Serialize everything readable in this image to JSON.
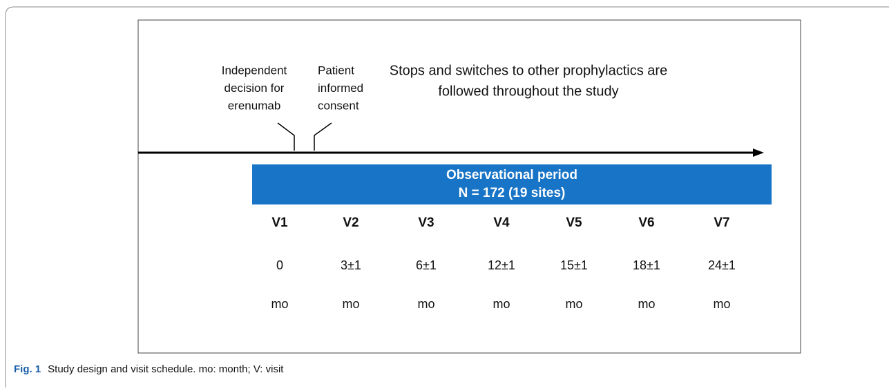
{
  "diagram": {
    "annotation_left": [
      "Independent",
      "decision for",
      "erenumab"
    ],
    "annotation_right": [
      "Patient",
      "informed",
      "consent"
    ],
    "note": [
      "Stops and switches to other prophylactics are",
      "followed throughout the study"
    ],
    "period": [
      "Observational period",
      "N = 172 (19 sites)"
    ],
    "visits": [
      {
        "label": "V1",
        "time": "0",
        "unit": "mo"
      },
      {
        "label": "V2",
        "time": "3±1",
        "unit": "mo"
      },
      {
        "label": "V3",
        "time": "6±1",
        "unit": "mo"
      },
      {
        "label": "V4",
        "time": "12±1",
        "unit": "mo"
      },
      {
        "label": "V5",
        "time": "15±1",
        "unit": "mo"
      },
      {
        "label": "V6",
        "time": "18±1",
        "unit": "mo"
      },
      {
        "label": "V7",
        "time": "24±1",
        "unit": "mo"
      }
    ]
  },
  "caption": {
    "label": "Fig. 1",
    "text": "Study design and visit schedule. mo: month; V: visit"
  }
}
